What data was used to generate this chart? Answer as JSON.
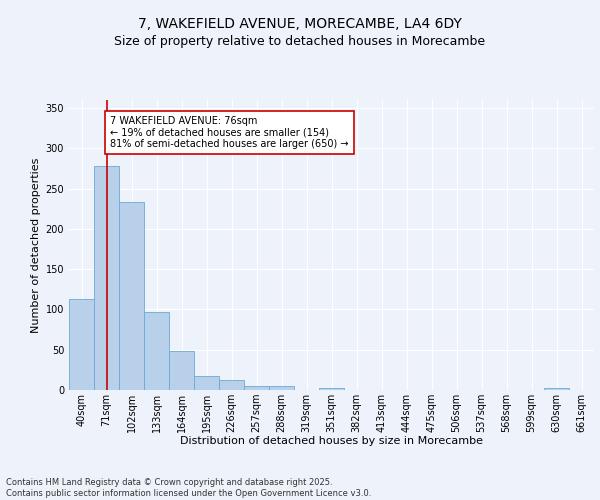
{
  "title_line1": "7, WAKEFIELD AVENUE, MORECAMBE, LA4 6DY",
  "title_line2": "Size of property relative to detached houses in Morecambe",
  "xlabel": "Distribution of detached houses by size in Morecambe",
  "ylabel": "Number of detached properties",
  "categories": [
    "40sqm",
    "71sqm",
    "102sqm",
    "133sqm",
    "164sqm",
    "195sqm",
    "226sqm",
    "257sqm",
    "288sqm",
    "319sqm",
    "351sqm",
    "382sqm",
    "413sqm",
    "444sqm",
    "475sqm",
    "506sqm",
    "537sqm",
    "568sqm",
    "599sqm",
    "630sqm",
    "661sqm"
  ],
  "values": [
    113,
    278,
    234,
    97,
    49,
    18,
    12,
    5,
    5,
    0,
    3,
    0,
    0,
    0,
    0,
    0,
    0,
    0,
    0,
    3,
    0
  ],
  "bar_color": "#b8d0ea",
  "bar_edge_color": "#6aaad4",
  "vline_x": 1.0,
  "vline_color": "#cc0000",
  "annotation_text": "7 WAKEFIELD AVENUE: 76sqm\n← 19% of detached houses are smaller (154)\n81% of semi-detached houses are larger (650) →",
  "annotation_box_color": "#ffffff",
  "annotation_box_edge": "#cc0000",
  "ylim": [
    0,
    360
  ],
  "yticks": [
    0,
    50,
    100,
    150,
    200,
    250,
    300,
    350
  ],
  "background_color": "#eef2fb",
  "grid_color": "#ffffff",
  "footer_text": "Contains HM Land Registry data © Crown copyright and database right 2025.\nContains public sector information licensed under the Open Government Licence v3.0.",
  "title_fontsize": 10,
  "subtitle_fontsize": 9,
  "axis_label_fontsize": 8,
  "tick_fontsize": 7,
  "annotation_fontsize": 7,
  "footer_fontsize": 6
}
